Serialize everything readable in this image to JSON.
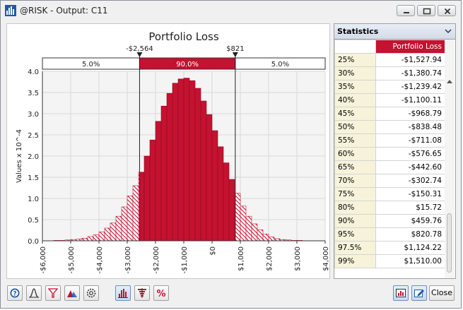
{
  "window": {
    "title": "@RISK - Output: C11",
    "minimize_icon": "minimize-icon",
    "maximize_icon": "maximize-icon",
    "close_icon": "close-icon"
  },
  "chart_data": {
    "type": "bar",
    "title": "Portfolio Loss",
    "ylabel": "Values x 10^-4",
    "xlabel": "",
    "xlim": [
      -6000,
      4000
    ],
    "ylim": [
      0,
      4.0
    ],
    "x_ticks": [
      "-$6,000",
      "-$5,000",
      "-$4,000",
      "-$3,000",
      "-$2,000",
      "-$1,000",
      "$0",
      "$1,000",
      "$2,000",
      "$3,000",
      "$4,000"
    ],
    "y_ticks": [
      "0.0",
      "0.5",
      "1.0",
      "1.5",
      "2.0",
      "2.5",
      "3.0",
      "3.5",
      "4.0"
    ],
    "grid": true,
    "bin_start": -5600,
    "bin_width": 200,
    "values": [
      0.01,
      0.01,
      0.02,
      0.03,
      0.04,
      0.06,
      0.1,
      0.14,
      0.21,
      0.3,
      0.42,
      0.58,
      0.8,
      1.06,
      1.3,
      1.62,
      2.0,
      2.38,
      2.82,
      3.18,
      3.48,
      3.72,
      3.82,
      3.84,
      3.78,
      3.6,
      3.3,
      2.98,
      2.6,
      2.22,
      1.84,
      1.45,
      1.12,
      0.82,
      0.58,
      0.4,
      0.26,
      0.16,
      0.09,
      0.05,
      0.03,
      0.02,
      0.01,
      0.01
    ],
    "delimiters": {
      "left_value": -2564,
      "right_value": 821,
      "left_label": "-$2,564",
      "right_label": "$821",
      "left_pct": "5.0%",
      "mid_pct": "90.0%",
      "right_pct": "5.0%"
    },
    "colors": {
      "bar": "#c41230",
      "bar_dark": "#8a0c22",
      "tail_hatch": "#c41230",
      "grid": "#d9d9d9"
    }
  },
  "statistics": {
    "title": "Statistics",
    "column_header": "Portfolio Loss",
    "rows": [
      {
        "label": "25%",
        "value": "-$1,527.94"
      },
      {
        "label": "30%",
        "value": "-$1,380.74"
      },
      {
        "label": "35%",
        "value": "-$1,239.42"
      },
      {
        "label": "40%",
        "value": "-$1,100.11"
      },
      {
        "label": "45%",
        "value": "-$968.79"
      },
      {
        "label": "50%",
        "value": "-$838.48"
      },
      {
        "label": "55%",
        "value": "-$711.08"
      },
      {
        "label": "60%",
        "value": "-$576.65"
      },
      {
        "label": "65%",
        "value": "-$442.60"
      },
      {
        "label": "70%",
        "value": "-$302.74"
      },
      {
        "label": "75%",
        "value": "-$150.31"
      },
      {
        "label": "80%",
        "value": "$15.72"
      },
      {
        "label": "90%",
        "value": "$459.76"
      },
      {
        "label": "95%",
        "value": "$820.78"
      },
      {
        "label": "97.5%",
        "value": "$1,124.22"
      },
      {
        "label": "99%",
        "value": "$1,510.00"
      }
    ]
  },
  "toolbar": {
    "left_buttons": [
      "help-icon",
      "distribution-fit-icon",
      "filter-icon",
      "overlay-icon",
      "settings-icon",
      "histogram-icon",
      "tornado-icon",
      "scenario-icon"
    ],
    "right_buttons": [
      "report-icon",
      "edit-icon"
    ],
    "close_label": "Close"
  }
}
